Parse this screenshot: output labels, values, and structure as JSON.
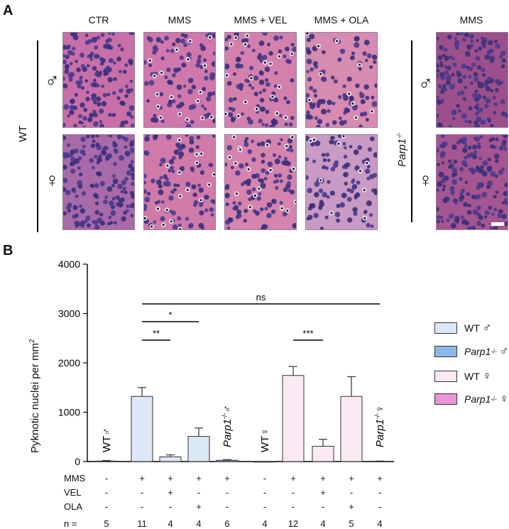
{
  "panel_a": {
    "letter": "A",
    "columns": [
      "CTR",
      "MMS",
      "MMS + VEL",
      "MMS + OLA",
      "MMS"
    ],
    "row_group_wt": "WT",
    "row_group_ko": "Parp1",
    "row_group_ko_sup": "-/-",
    "male_symbol": "♂",
    "female_symbol": "♀",
    "tile_colors": {
      "ctr_male": "#c86fa8",
      "ctr_female": "#a86aa8",
      "mms_male": "#d078ac",
      "mms_female": "#cf7aa8",
      "vel_male": "#d480ac",
      "vel_female": "#d584ad",
      "ola_male": "#d78bb0",
      "ola_female": "#c89ac4",
      "ko_male": "#9c4f8a",
      "ko_female": "#a5558f"
    }
  },
  "panel_b": {
    "letter": "B",
    "legend": [
      {
        "label": "WT",
        "sup": "",
        "sym": "♂",
        "color": "#dde8f6"
      },
      {
        "label": "Parp1",
        "sup": "-/-",
        "sym": "♂",
        "color": "#8bb8e8"
      },
      {
        "label": "WT",
        "sup": "",
        "sym": "♀",
        "color": "#fde8f5"
      },
      {
        "label": "Parp1",
        "sup": "-/-",
        "sym": "♀",
        "color": "#ea95d6"
      }
    ],
    "cond_labels": [
      "MMS",
      "VEL",
      "OLA",
      "n ="
    ],
    "conditions": {
      "MMS": [
        "-",
        "+",
        "+",
        "+",
        "+",
        "-",
        "+",
        "+",
        "+",
        "+"
      ],
      "VEL": [
        "-",
        "-",
        "+",
        "-",
        "-",
        "-",
        "-",
        "+",
        "-",
        "-"
      ],
      "OLA": [
        "-",
        "-",
        "-",
        "+",
        "-",
        "-",
        "-",
        "-",
        "+",
        "-"
      ],
      "n": [
        "5",
        "11",
        "4",
        "4",
        "6",
        "4",
        "12",
        "4",
        "5",
        "4"
      ]
    },
    "bar_text_labels": [
      {
        "index": 0,
        "text": "WT♂"
      },
      {
        "index": 4,
        "text": "Parp1",
        "sup": "-/-",
        "tail": "♂"
      },
      {
        "index": 5,
        "text": "WT♀"
      },
      {
        "index": 9,
        "text": "Parp1",
        "sup": "-/-",
        "tail": "♀"
      }
    ],
    "significance": [
      {
        "from": 1,
        "to": 9,
        "label": "ns"
      },
      {
        "from": 1,
        "to": 3,
        "label": "*"
      },
      {
        "from": 1,
        "to": 2,
        "label": "**"
      },
      {
        "from": 6,
        "to": 7,
        "label": "***"
      }
    ]
  },
  "chart_data": {
    "type": "bar",
    "ylabel": "Pyknotic nuclei per mm",
    "ylabel_sup": "2",
    "ylim": [
      0,
      4000
    ],
    "yticks": [
      0,
      1000,
      2000,
      3000,
      4000
    ],
    "series": [
      {
        "name": "bars",
        "values": [
          10,
          1320,
          95,
          510,
          25,
          0,
          1745,
          310,
          1320,
          5
        ],
        "errors": [
          10,
          180,
          40,
          170,
          15,
          0,
          180,
          140,
          400,
          5
        ],
        "colors": [
          "#dde8f6",
          "#dde8f6",
          "#dde8f6",
          "#dde8f6",
          "#8bb8e8",
          "#fde8f5",
          "#fde8f5",
          "#fde8f5",
          "#fde8f5",
          "#ea95d6"
        ]
      }
    ]
  }
}
